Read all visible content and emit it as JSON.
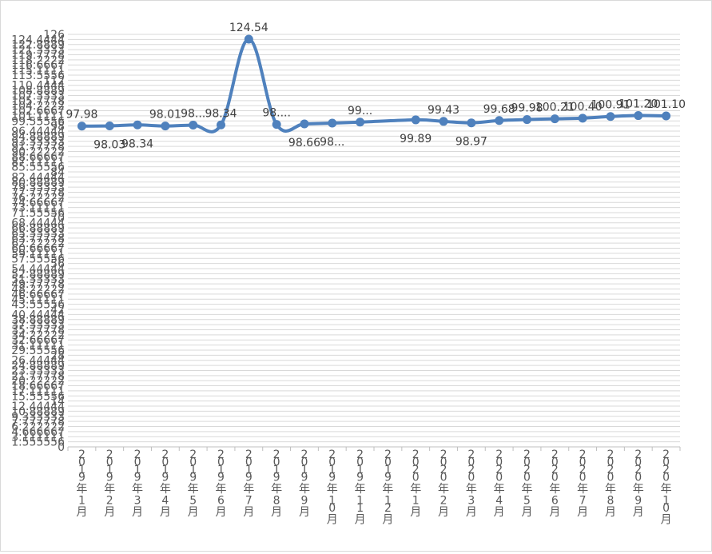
{
  "chart_data": {
    "type": "line",
    "title": "",
    "xlabel": "",
    "ylabel": "",
    "ylim": [
      0,
      126
    ],
    "grid": true,
    "legend": "none",
    "line_color": "#4f81bd",
    "categories": [
      "2019年1月",
      "2019年2月",
      "2019年3月",
      "2019年4月",
      "2019年5月",
      "2019年6月",
      "2019年7月",
      "2019年8月",
      "2019年9月",
      "2019年10月",
      "2019年11月",
      "2019年12月",
      "2020年1月",
      "2020年2月",
      "2020年3月",
      "2020年4月",
      "2020年5月",
      "2020年6月",
      "2020年7月",
      "2020年8月",
      "2020年9月",
      "2020年10月"
    ],
    "values": [
      97.98,
      98.03,
      98.34,
      98.01,
      98.3,
      98.34,
      124.54,
      98.5,
      98.66,
      98.9,
      99.2,
      null,
      99.89,
      99.43,
      98.97,
      99.68,
      99.98,
      100.21,
      100.4,
      100.91,
      101.2,
      101.1
    ],
    "data_labels": [
      "97.98",
      "98.03",
      "98.34",
      "98.01",
      "98...",
      "98.34",
      "124.54",
      "98....",
      "98.66",
      "98...",
      "99...",
      "",
      "99.89",
      "99.43",
      "98.97",
      "99.68",
      "99.98",
      "100.21",
      "100.40",
      "100.91",
      "101.20",
      "101.10"
    ],
    "label_above": [
      true,
      false,
      false,
      true,
      true,
      true,
      true,
      true,
      false,
      false,
      true,
      false,
      false,
      true,
      false,
      true,
      true,
      true,
      true,
      true,
      true,
      true
    ],
    "y_tick_labels": [
      "0",
      "1.555556",
      "3.111111",
      "4.666667",
      "6.222222",
      "7.777778",
      "9.333333",
      "10.88889",
      "12.44444",
      "14",
      "15.55556",
      "17.11111",
      "18.66667",
      "20.22222",
      "21.77778",
      "23.33333",
      "24.88889",
      "26.44444",
      "28",
      "29.55556",
      "31.11111",
      "32.66667",
      "34.22222",
      "35.77778",
      "37.33333",
      "38.88889",
      "40.44444",
      "42",
      "43.55556",
      "45.11111",
      "46.66667",
      "48.22222",
      "49.77778",
      "51.33333",
      "52.88889",
      "54.44444",
      "56",
      "57.55556",
      "59.11111",
      "60.66667",
      "62.22222",
      "63.77778",
      "65.33333",
      "66.88889",
      "68.44444",
      "70",
      "71.55556",
      "73.11111",
      "74.66667",
      "76.22222",
      "77.77778",
      "79.33333",
      "80.88889",
      "82.44444",
      "84",
      "85.55556",
      "87.11111",
      "88.66667",
      "90.22222",
      "91.77778",
      "93.33333",
      "94.88889",
      "96.44444",
      "98",
      "99.55556",
      "101.1111",
      "102.6667",
      "104.2222",
      "105.7778",
      "107.3333",
      "108.8889",
      "110.4444",
      "112",
      "113.5556",
      "115.1111",
      "116.6667",
      "118.2222",
      "119.7778",
      "121.3333",
      "122.8889",
      "124.4444",
      "126"
    ]
  }
}
